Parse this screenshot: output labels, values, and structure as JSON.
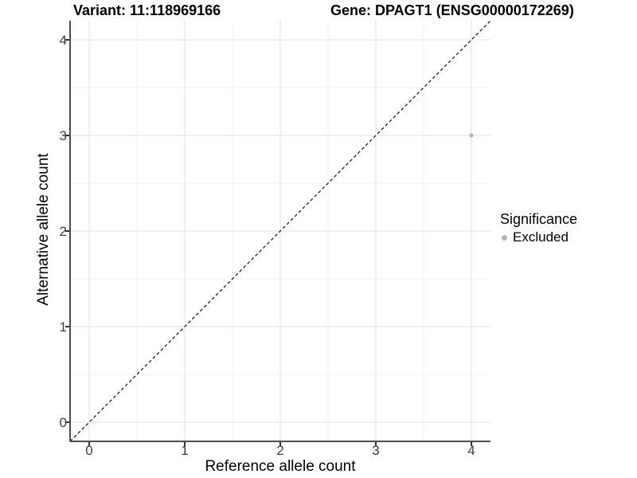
{
  "header": {
    "title_left": "Variant: 11:118969166",
    "title_right": "Gene: DPAGT1 (ENSG00000172269)"
  },
  "chart_data": {
    "type": "scatter",
    "title_left": "Variant: 11:118969166",
    "title_right": "Gene: DPAGT1 (ENSG00000172269)",
    "xlabel": "Reference allele count",
    "ylabel": "Alternative allele count",
    "xlim": [
      -0.2,
      4.2
    ],
    "ylim": [
      -0.2,
      4.2
    ],
    "x_ticks": [
      0,
      1,
      2,
      3,
      4
    ],
    "y_ticks": [
      0,
      1,
      2,
      3,
      4
    ],
    "x_minor_ticks": [
      0.5,
      1.5,
      2.5,
      3.5
    ],
    "y_minor_ticks": [
      0.5,
      1.5,
      2.5,
      3.5
    ],
    "grid": true,
    "legend_position": "right",
    "series": [
      {
        "name": "Excluded",
        "color": "#b3b3b3",
        "point_radius": 2.5,
        "points": [
          {
            "x": 4,
            "y": 3
          }
        ]
      }
    ],
    "reference_line": {
      "kind": "identity y=x",
      "style": "dashed",
      "color": "#111111"
    },
    "legend": {
      "title": "Significance",
      "items": [
        {
          "label": "Excluded",
          "color": "#b3b3b3"
        }
      ]
    }
  },
  "colors": {
    "background": "#ffffff",
    "grid_major": "#e2e2e2",
    "grid_minor": "#f0f0f0",
    "axis_line": "#4d4d4d",
    "tick_mark": "#333333",
    "point": "#b3b3b3"
  }
}
